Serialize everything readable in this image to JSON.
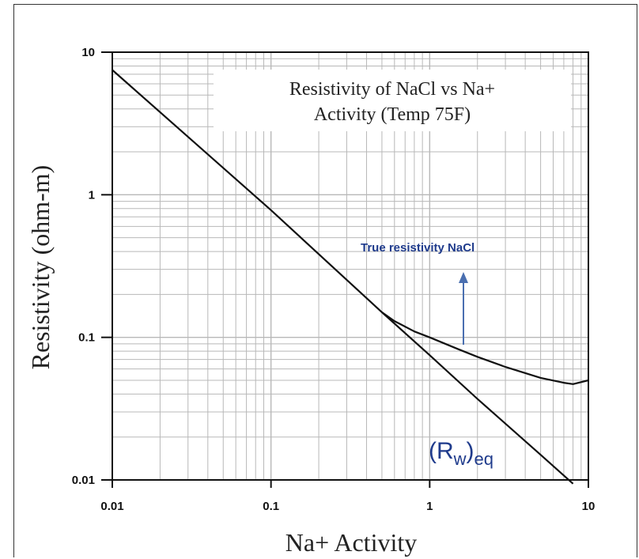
{
  "chart_data": {
    "type": "line",
    "title": "Resistivity of NaCl vs Na+ Activity (Temp 75F)",
    "title_lines": [
      "Resistivity of NaCl vs Na+",
      "Activity (Temp 75F)"
    ],
    "xlabel": "Na+ Activity",
    "ylabel": "Resistivity (ohm-m)",
    "x_scale": "log",
    "y_scale": "log",
    "xlim": [
      0.01,
      10
    ],
    "ylim": [
      0.01,
      10
    ],
    "x_ticks": [
      "0.01",
      "0.1",
      "1",
      "10"
    ],
    "y_ticks": [
      "10",
      "1",
      "0.1",
      "0.01"
    ],
    "grid": true,
    "series": [
      {
        "key": "rw-eq",
        "x": [
          0.01,
          0.1,
          0.5,
          1,
          2,
          5,
          8
        ],
        "y": [
          7.5,
          0.78,
          0.15,
          0.075,
          0.037,
          0.015,
          0.0094
        ]
      },
      {
        "key": "true-nacl",
        "x": [
          0.5,
          0.6,
          0.8,
          1,
          1.5,
          2,
          3,
          5,
          7,
          8,
          10
        ],
        "y": [
          0.15,
          0.13,
          0.11,
          0.1,
          0.083,
          0.073,
          0.062,
          0.052,
          0.048,
          0.047,
          0.05
        ]
      }
    ],
    "annotations": {
      "true_resistivity": "True resistivity NaCl",
      "rw_base": "(R",
      "rw_sub": "w",
      "rw_close": ")",
      "rw_eq": "eq"
    },
    "colors": {
      "curve": "#111111",
      "grid": "#b8b8b8",
      "annotation": "#1f3b8c",
      "arrow": "#4a6fb0"
    }
  }
}
